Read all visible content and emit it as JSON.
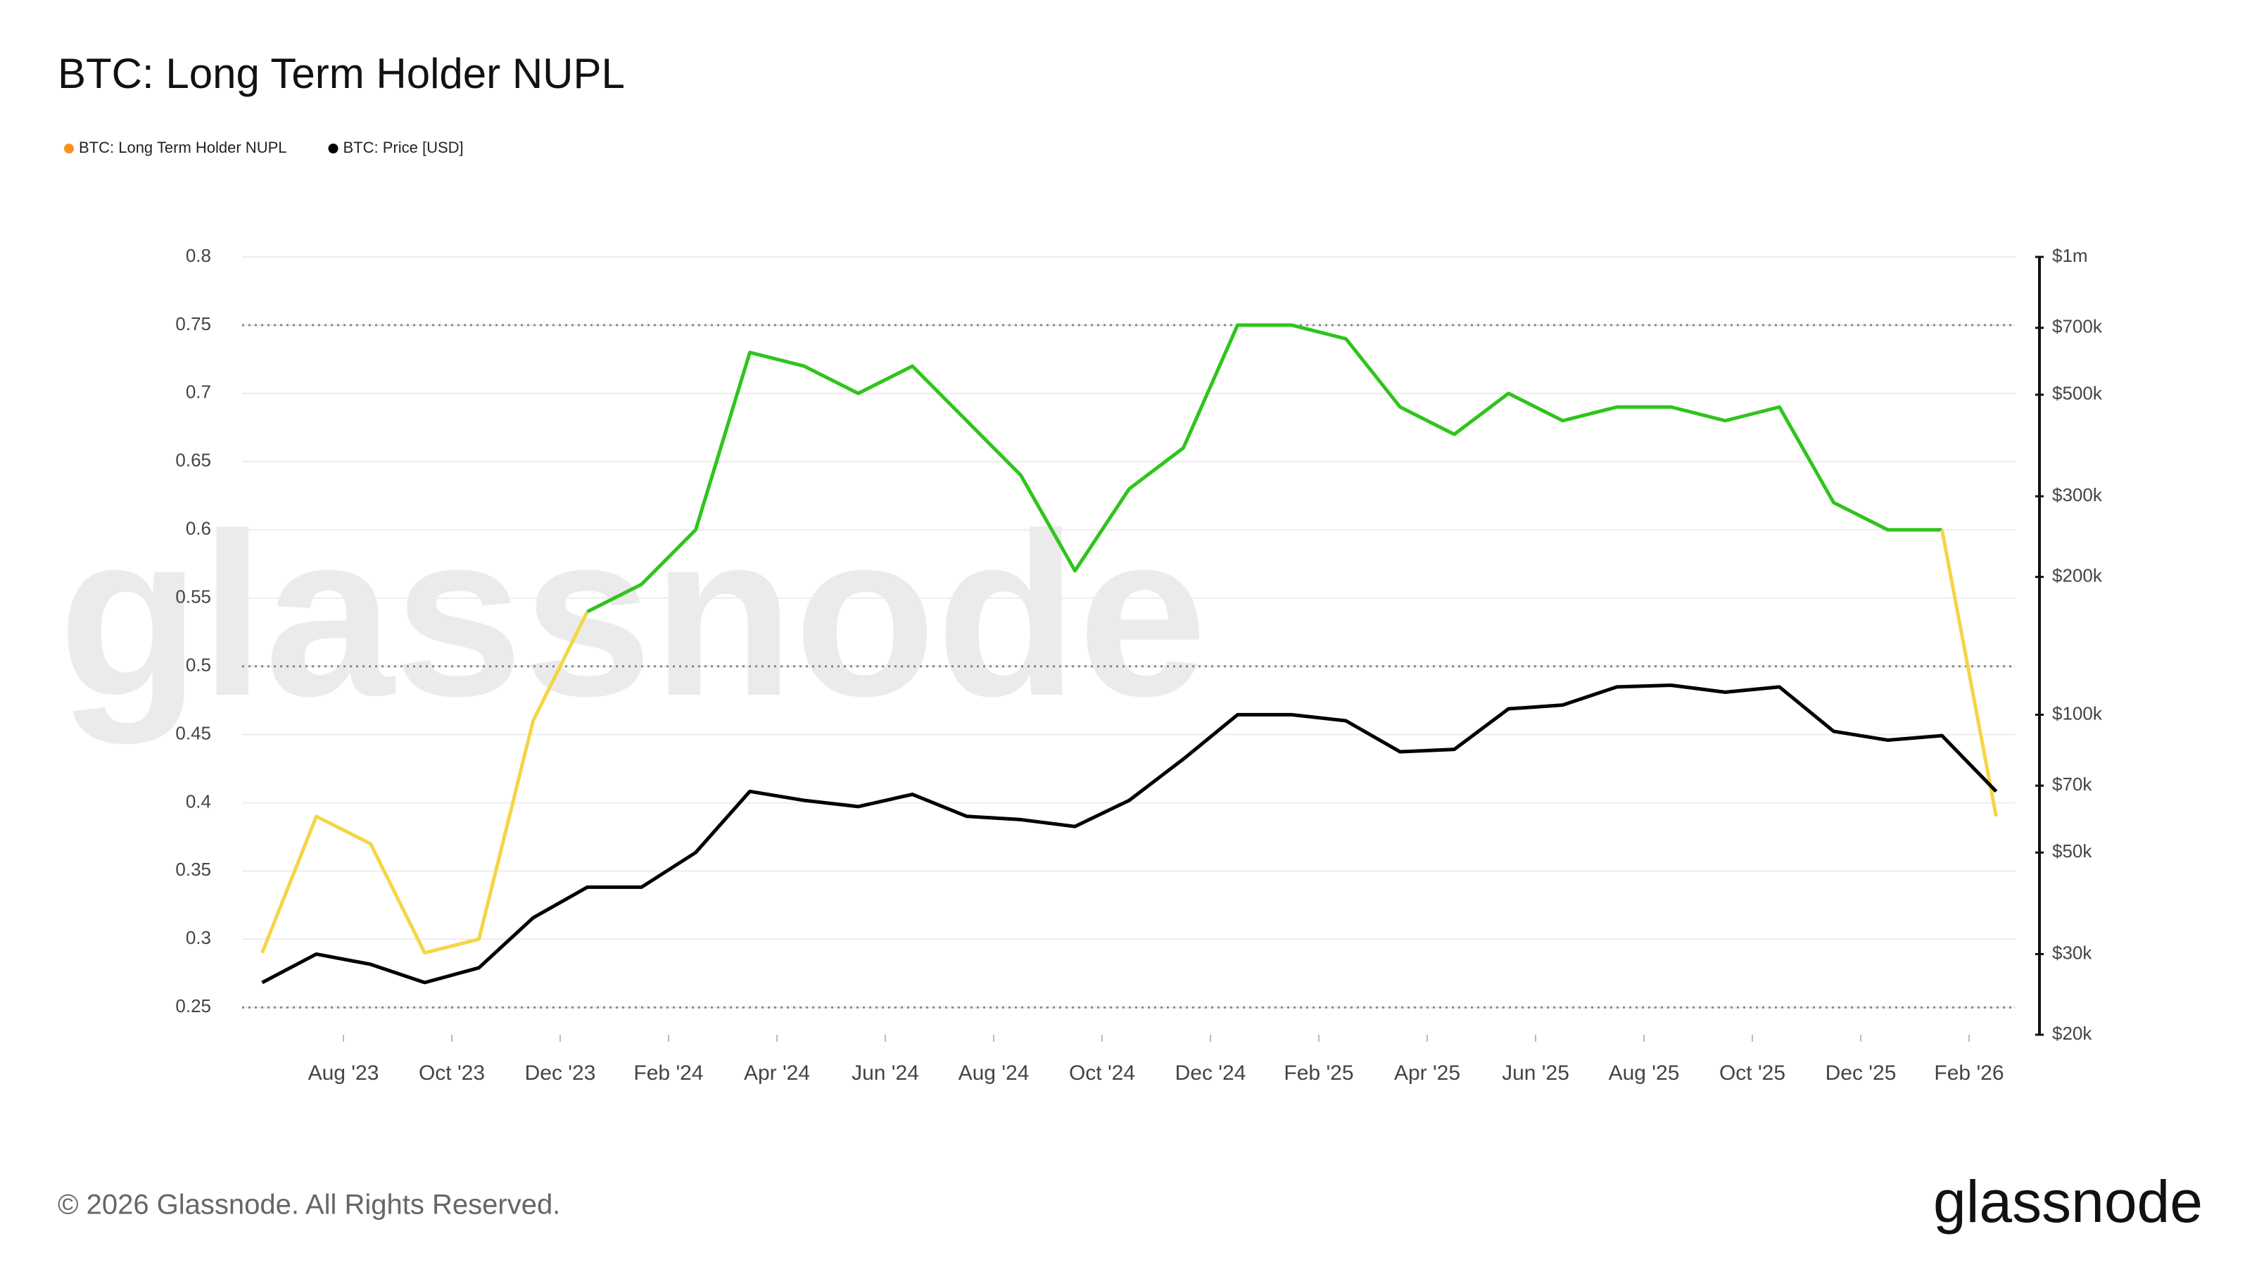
{
  "chart_data": {
    "type": "line",
    "title": "BTC: Long Term Holder NUPL",
    "x": [
      "2023-06",
      "2023-07",
      "2023-08",
      "2023-09",
      "2023-10",
      "2023-11",
      "2023-12",
      "2024-01",
      "2024-02",
      "2024-03",
      "2024-04",
      "2024-05",
      "2024-06",
      "2024-07",
      "2024-08",
      "2024-09",
      "2024-10",
      "2024-11",
      "2024-12",
      "2025-01",
      "2025-02",
      "2025-03",
      "2025-04",
      "2025-05",
      "2025-06",
      "2025-07",
      "2025-08",
      "2025-09",
      "2025-10",
      "2025-11",
      "2025-12",
      "2026-01",
      "2026-02"
    ],
    "xticks": [
      {
        "value": "2023-08",
        "label": "Aug '23"
      },
      {
        "value": "2023-10",
        "label": "Oct '23"
      },
      {
        "value": "2023-12",
        "label": "Dec '23"
      },
      {
        "value": "2024-02",
        "label": "Feb '24"
      },
      {
        "value": "2024-04",
        "label": "Apr '24"
      },
      {
        "value": "2024-06",
        "label": "Jun '24"
      },
      {
        "value": "2024-08",
        "label": "Aug '24"
      },
      {
        "value": "2024-10",
        "label": "Oct '24"
      },
      {
        "value": "2024-12",
        "label": "Dec '24"
      },
      {
        "value": "2025-02",
        "label": "Feb '25"
      },
      {
        "value": "2025-04",
        "label": "Apr '25"
      },
      {
        "value": "2025-06",
        "label": "Jun '25"
      },
      {
        "value": "2025-08",
        "label": "Aug '25"
      },
      {
        "value": "2025-10",
        "label": "Oct '25"
      },
      {
        "value": "2025-12",
        "label": "Dec '25"
      },
      {
        "value": "2026-02",
        "label": "Feb '26"
      }
    ],
    "series": [
      {
        "name": "BTC: Long Term Holder NUPL",
        "color": "#f7931a",
        "values": [
          0.29,
          0.39,
          0.37,
          0.29,
          0.3,
          0.46,
          0.54,
          0.56,
          0.6,
          0.73,
          0.72,
          0.7,
          0.72,
          0.68,
          0.64,
          0.57,
          0.63,
          0.66,
          0.75,
          0.75,
          0.74,
          0.69,
          0.67,
          0.7,
          0.68,
          0.69,
          0.69,
          0.68,
          0.69,
          0.62,
          0.6,
          0.6,
          0.39
        ]
      },
      {
        "name": "BTC: Price [USD]",
        "color": "#000000",
        "axis": "y2",
        "values": [
          26000,
          30000,
          28500,
          26000,
          28000,
          36000,
          42000,
          42000,
          50000,
          68000,
          65000,
          63000,
          67000,
          60000,
          59000,
          57000,
          65000,
          80000,
          100000,
          100000,
          97000,
          83000,
          84000,
          103000,
          105000,
          115000,
          116000,
          112000,
          115000,
          92000,
          88000,
          90000,
          68000
        ]
      }
    ],
    "zones": [
      {
        "max": 0.5,
        "color": "#f5d547"
      },
      {
        "max": 0.75,
        "color": "#2fc41c"
      },
      {
        "max": 0.8,
        "color": "#3d68e0"
      }
    ],
    "ref_lines": [
      0.25,
      0.5,
      0.75
    ],
    "ylim": [
      0.23,
      0.8
    ],
    "yticks": [
      0.25,
      0.3,
      0.35,
      0.4,
      0.45,
      0.5,
      0.55,
      0.6,
      0.65,
      0.7,
      0.75,
      0.8
    ],
    "y2log": true,
    "y2lim": [
      20000,
      1000000
    ],
    "y2ticks": [
      {
        "value": 20000,
        "label": "$20k"
      },
      {
        "value": 30000,
        "label": "$30k"
      },
      {
        "value": 50000,
        "label": "$50k"
      },
      {
        "value": 70000,
        "label": "$70k"
      },
      {
        "value": 100000,
        "label": "$100k"
      },
      {
        "value": 200000,
        "label": "$200k"
      },
      {
        "value": 300000,
        "label": "$300k"
      },
      {
        "value": 500000,
        "label": "$500k"
      },
      {
        "value": 700000,
        "label": "$700k"
      },
      {
        "value": 1000000,
        "label": "$1m"
      }
    ],
    "grid": true
  },
  "watermark": "glassnode",
  "footer": {
    "copyright": "© 2026 Glassnode. All Rights Reserved.",
    "logo": "glassnode"
  }
}
